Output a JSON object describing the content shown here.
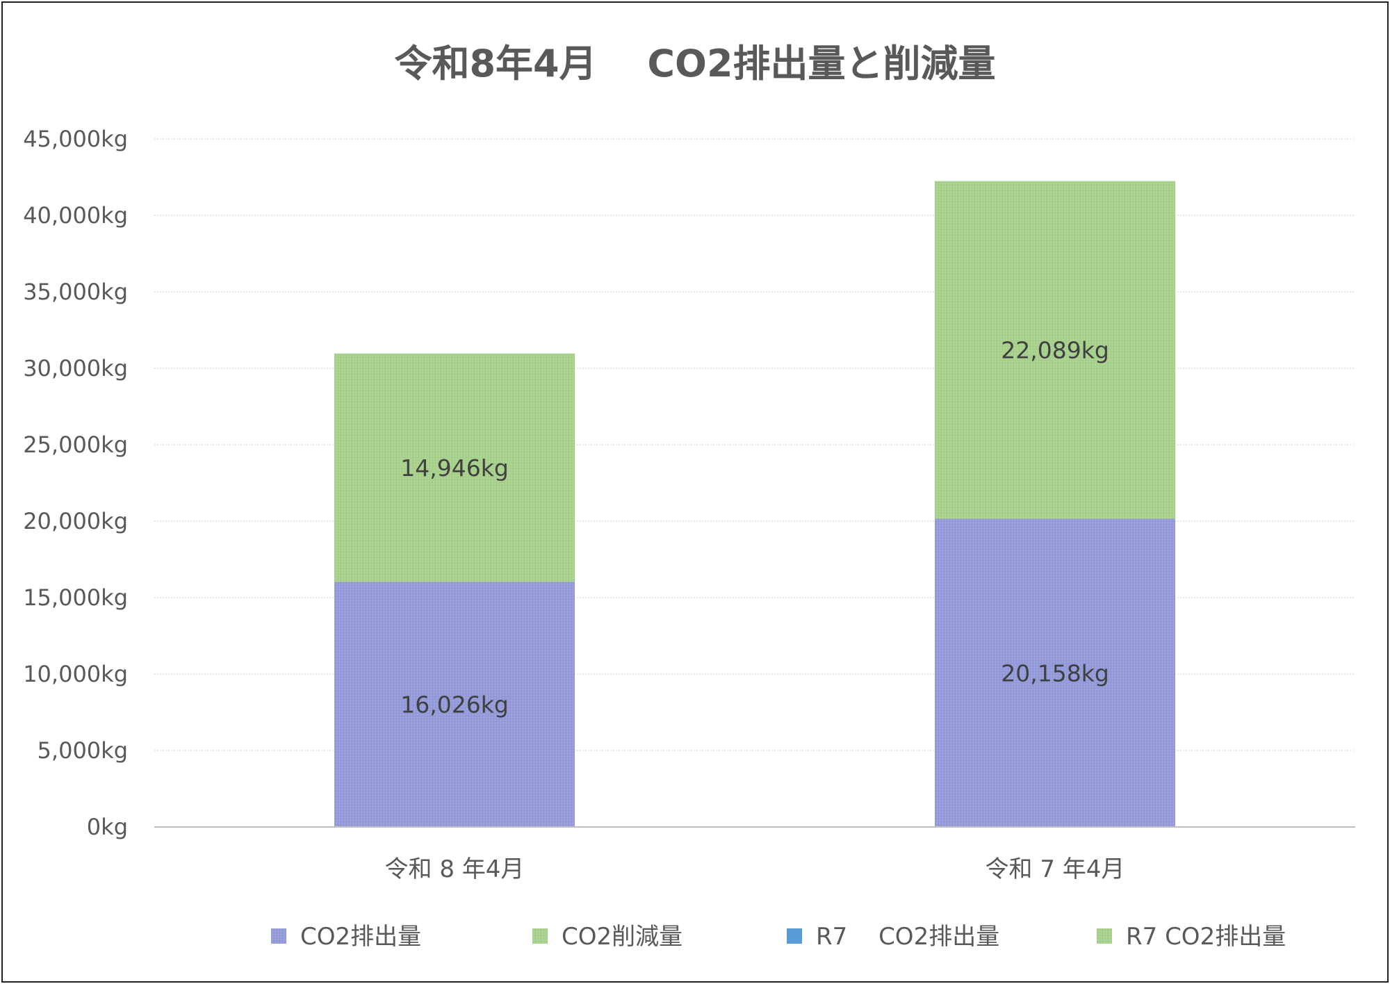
{
  "chart_data": {
    "type": "bar",
    "stacked": true,
    "title": "令和8年4月　 CO2排出量と削減量",
    "xlabel": "",
    "ylabel": "",
    "categories": [
      "令和 8 年4月",
      "令和 7 年4月"
    ],
    "ylim": [
      0,
      45000
    ],
    "yticks": [
      0,
      5000,
      10000,
      15000,
      20000,
      25000,
      30000,
      35000,
      40000,
      45000
    ],
    "ytick_labels": [
      "0kg",
      "5,000kg",
      "10,000kg",
      "15,000kg",
      "20,000kg",
      "25,000kg",
      "30,000kg",
      "35,000kg",
      "40,000kg",
      "45,000kg"
    ],
    "grid": true,
    "legend_position": "bottom",
    "series": [
      {
        "name": "CO2排出量",
        "color": "#959cd9",
        "values": [
          16026,
          null
        ],
        "data_labels": [
          "16,026kg",
          null
        ]
      },
      {
        "name": "CO2削減量",
        "color": "#a9d18e",
        "values": [
          14946,
          null
        ],
        "data_labels": [
          "14,946kg",
          null
        ]
      },
      {
        "name": "R7　 CO2排出量",
        "color": "#959cd9",
        "legend_color": "#5b9bd5",
        "values": [
          null,
          20158
        ],
        "data_labels": [
          null,
          "20,158kg"
        ]
      },
      {
        "name": "R7 CO2排出量",
        "color": "#a9d18e",
        "values": [
          null,
          22089
        ],
        "data_labels": [
          null,
          "22,089kg"
        ]
      }
    ]
  }
}
